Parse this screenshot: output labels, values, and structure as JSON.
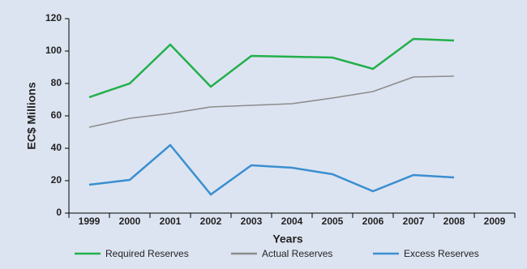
{
  "chart_data": {
    "type": "line",
    "categories": [
      "1999",
      "2000",
      "2001",
      "2002",
      "2003",
      "2004",
      "2005",
      "2006",
      "2007",
      "2008",
      "2009"
    ],
    "series": [
      {
        "name": "Required Reserves",
        "color": "#22b04b",
        "values": [
          71.5,
          80,
          104,
          78,
          97,
          96.5,
          96,
          89,
          107.5,
          106.5,
          null
        ]
      },
      {
        "name": "Actual Reserves",
        "color": "#8c8c8c",
        "values": [
          53,
          58.5,
          61.5,
          65.5,
          66.5,
          67.5,
          71,
          75,
          84,
          84.5,
          null
        ]
      },
      {
        "name": "Excess Reserves",
        "color": "#3a8fd0",
        "values": [
          17.5,
          20.5,
          42,
          11.5,
          29.5,
          28,
          24,
          13.5,
          23.5,
          22,
          null
        ]
      }
    ],
    "ylabel": "EC$ Millions",
    "xlabel": "Years",
    "ylim": [
      0,
      120
    ],
    "yticks": [
      0,
      20,
      40,
      60,
      80,
      100,
      120
    ],
    "legend": "bottom"
  }
}
